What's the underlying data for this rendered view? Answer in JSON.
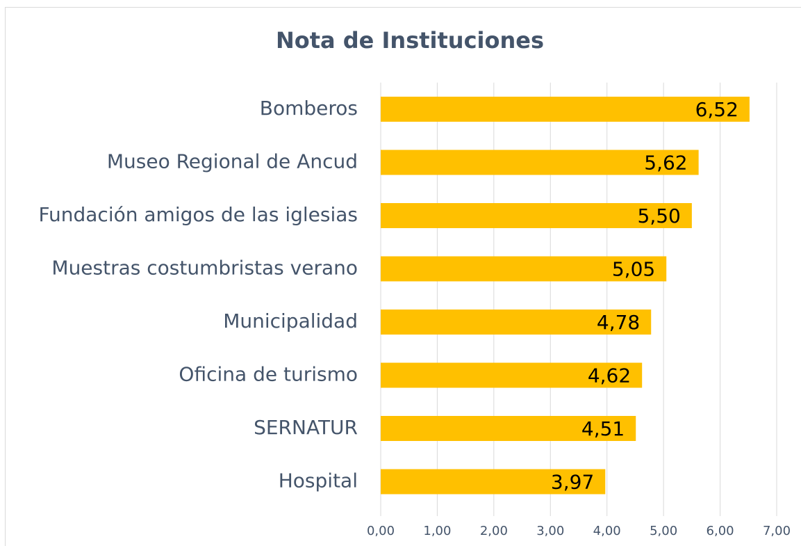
{
  "chart_data": {
    "type": "barh",
    "title": "Nota de Instituciones",
    "categories": [
      "Bomberos",
      "Museo Regional de Ancud",
      "Fundación amigos de las iglesias",
      "Muestras costumbristas verano",
      "Municipalidad",
      "Oficina de turismo",
      "SERNATUR",
      "Hospital"
    ],
    "values": [
      6.52,
      5.62,
      5.5,
      5.05,
      4.78,
      4.62,
      4.51,
      3.97
    ],
    "value_labels": [
      "6,52",
      "5,62",
      "5,50",
      "5,05",
      "4,78",
      "4,62",
      "4,51",
      "3,97"
    ],
    "color": "#ffc000",
    "xlim": [
      0,
      7
    ],
    "xticks": [
      {
        "value": 0,
        "label": "0,00"
      },
      {
        "value": 1,
        "label": "1,00"
      },
      {
        "value": 2,
        "label": "2,00"
      },
      {
        "value": 3,
        "label": "3,00"
      },
      {
        "value": 4,
        "label": "4,00"
      },
      {
        "value": 5,
        "label": "5,00"
      },
      {
        "value": 6,
        "label": "6,00"
      },
      {
        "value": 7,
        "label": "7,00"
      }
    ],
    "grid": true
  }
}
